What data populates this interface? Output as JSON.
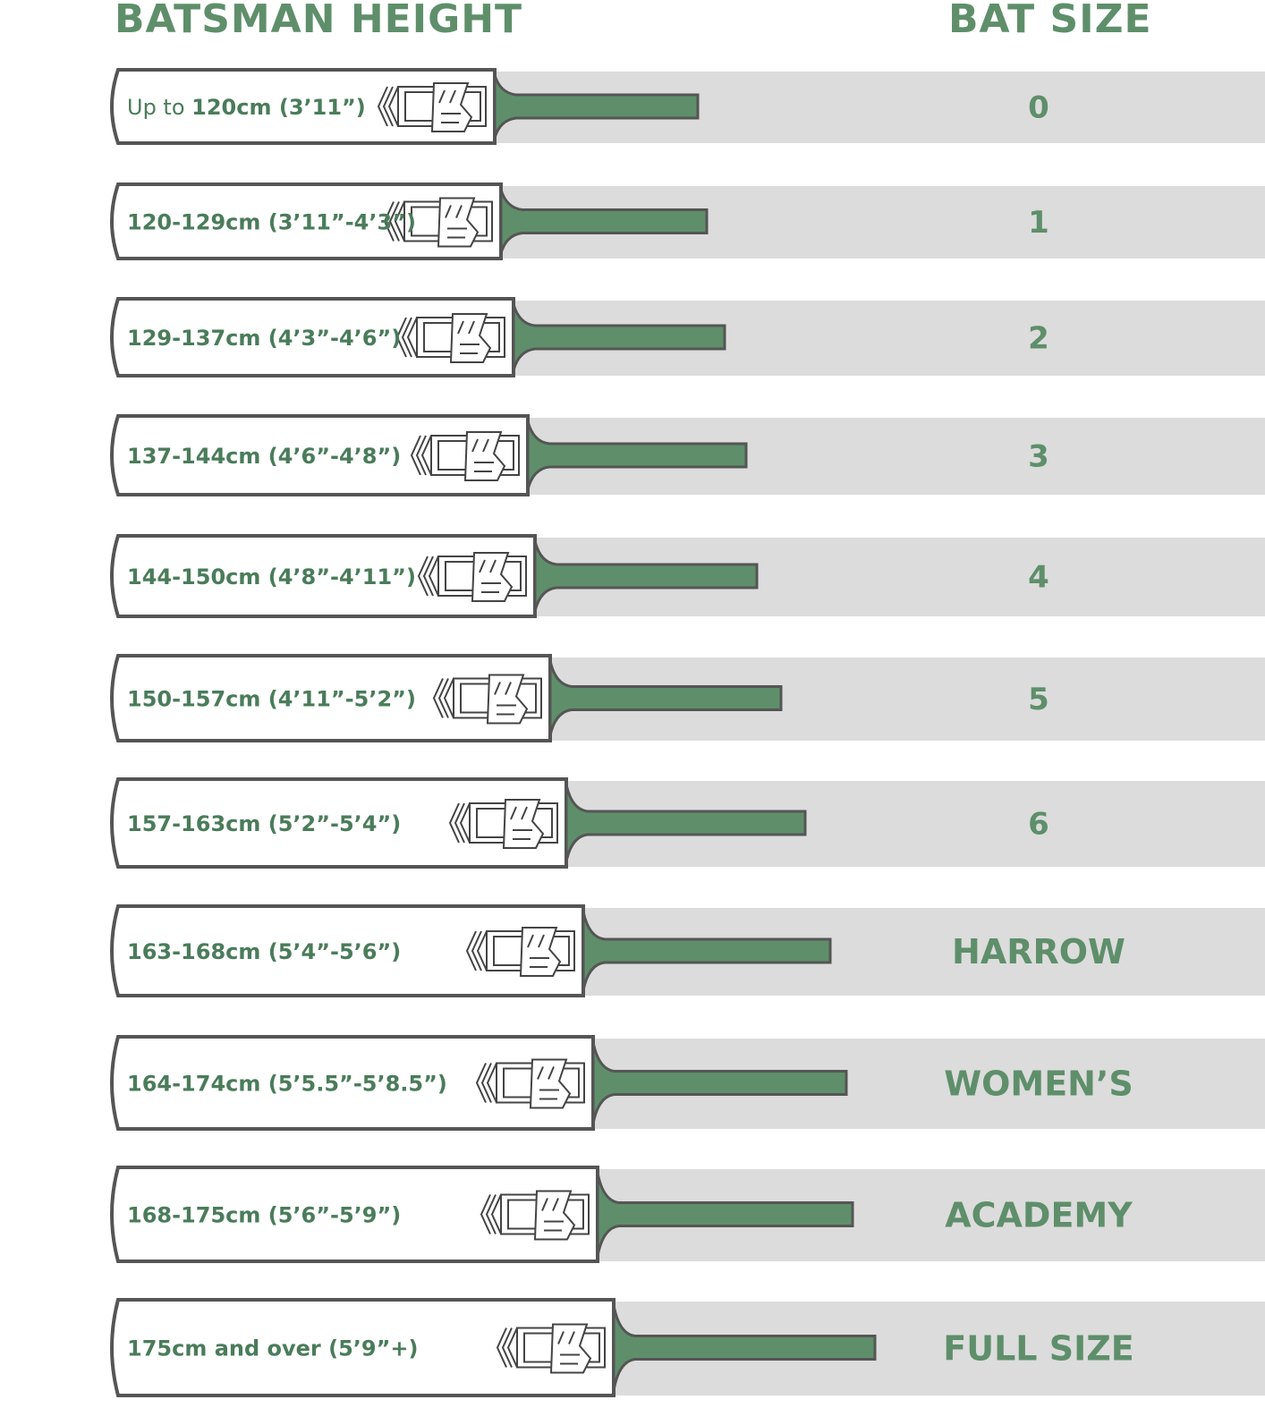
{
  "headers": {
    "height": "BATSMAN HEIGHT",
    "size": "BAT SIZE"
  },
  "colors": {
    "green": "#5e8f6a",
    "band": "#dcdcdc",
    "outline": "#555555"
  },
  "icons": {
    "bat_logo": "stylized-b-logo-icon"
  },
  "rows": [
    {
      "height_prefix": "Up to ",
      "height": "120cm (3’11”)",
      "size": "0"
    },
    {
      "height_prefix": "",
      "height": "120-129cm (3’11”-4’3”)",
      "size": "1"
    },
    {
      "height_prefix": "",
      "height": "129-137cm (4’3”-4’6”)",
      "size": "2"
    },
    {
      "height_prefix": "",
      "height": "137-144cm (4’6”-4’8”)",
      "size": "3"
    },
    {
      "height_prefix": "",
      "height": "144-150cm (4’8”-4’11”)",
      "size": "4"
    },
    {
      "height_prefix": "",
      "height": "150-157cm (4’11”-5’2”)",
      "size": "5"
    },
    {
      "height_prefix": "",
      "height": "157-163cm (5’2”-5’4”)",
      "size": "6"
    },
    {
      "height_prefix": "",
      "height": "163-168cm (5’4”-5’6”)",
      "size": "HARROW"
    },
    {
      "height_prefix": "",
      "height": "164-174cm (5’5.5”-5’8.5”)",
      "size": "WOMEN’S"
    },
    {
      "height_prefix": "",
      "height": "168-175cm (5’6”-5’9”)",
      "size": "ACADEMY"
    },
    {
      "height_prefix": "",
      "height": "175cm and over (5’9”+)",
      "size": "FULL SIZE"
    }
  ]
}
